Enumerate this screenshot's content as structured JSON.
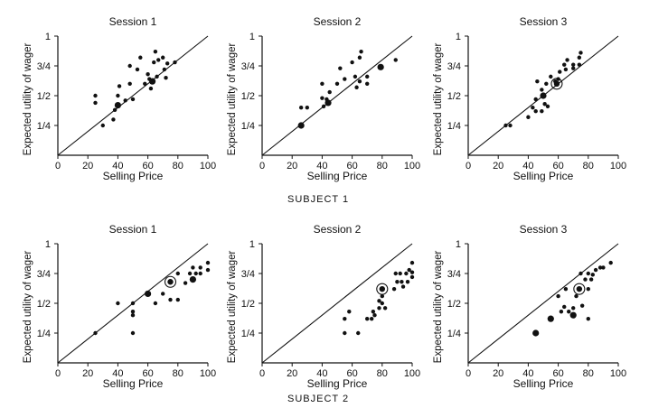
{
  "figure": {
    "subject_labels": [
      "SUBJECT 1",
      "SUBJECT 2"
    ],
    "ink_color": "#111111"
  },
  "chart_data": [
    {
      "type": "scatter",
      "subject": "SUBJECT 1",
      "title": "Session 1",
      "xlabel": "Selling Price",
      "ylabel": "Expected utility of wager",
      "xlim": [
        0,
        100
      ],
      "ylim": [
        0,
        1
      ],
      "x_ticks": [
        "0",
        "20",
        "40",
        "60",
        "80",
        "100"
      ],
      "y_ticks": [
        "1/4",
        "1/2",
        "3/4",
        "1"
      ],
      "reference_line": [
        [
          0,
          0
        ],
        [
          100,
          1
        ]
      ],
      "points": [
        {
          "x": 25,
          "y": 0.5,
          "marker": "dot"
        },
        {
          "x": 25,
          "y": 0.44,
          "marker": "dot"
        },
        {
          "x": 30,
          "y": 0.25,
          "marker": "dot"
        },
        {
          "x": 37,
          "y": 0.3,
          "marker": "dot"
        },
        {
          "x": 38,
          "y": 0.38,
          "marker": "dot"
        },
        {
          "x": 40,
          "y": 0.42,
          "marker": "large-dot"
        },
        {
          "x": 40,
          "y": 0.5,
          "marker": "dot"
        },
        {
          "x": 41,
          "y": 0.58,
          "marker": "dot"
        },
        {
          "x": 45,
          "y": 0.46,
          "marker": "dot"
        },
        {
          "x": 48,
          "y": 0.6,
          "marker": "dot"
        },
        {
          "x": 48,
          "y": 0.75,
          "marker": "dot"
        },
        {
          "x": 50,
          "y": 0.47,
          "marker": "dot"
        },
        {
          "x": 53,
          "y": 0.72,
          "marker": "dot"
        },
        {
          "x": 55,
          "y": 0.82,
          "marker": "dot"
        },
        {
          "x": 58,
          "y": 0.6,
          "marker": "dot"
        },
        {
          "x": 60,
          "y": 0.68,
          "marker": "dot"
        },
        {
          "x": 61,
          "y": 0.64,
          "marker": "dot"
        },
        {
          "x": 62,
          "y": 0.56,
          "marker": "dot"
        },
        {
          "x": 63,
          "y": 0.62,
          "marker": "large-dot"
        },
        {
          "x": 64,
          "y": 0.78,
          "marker": "dot"
        },
        {
          "x": 65,
          "y": 0.87,
          "marker": "dot"
        },
        {
          "x": 66,
          "y": 0.66,
          "marker": "dot"
        },
        {
          "x": 67,
          "y": 0.8,
          "marker": "dot"
        },
        {
          "x": 70,
          "y": 0.82,
          "marker": "dot"
        },
        {
          "x": 71,
          "y": 0.72,
          "marker": "dot"
        },
        {
          "x": 72,
          "y": 0.65,
          "marker": "dot"
        },
        {
          "x": 73,
          "y": 0.77,
          "marker": "dot"
        },
        {
          "x": 78,
          "y": 0.78,
          "marker": "dot"
        }
      ]
    },
    {
      "type": "scatter",
      "subject": "SUBJECT 1",
      "title": "Session 2",
      "xlabel": "Selling Price",
      "ylabel": "Expected utility of wager",
      "xlim": [
        0,
        100
      ],
      "ylim": [
        0,
        1
      ],
      "x_ticks": [
        "0",
        "20",
        "40",
        "60",
        "80",
        "100"
      ],
      "y_ticks": [
        "1/4",
        "1/2",
        "3/4",
        "1"
      ],
      "reference_line": [
        [
          0,
          0
        ],
        [
          100,
          1
        ]
      ],
      "points": [
        {
          "x": 26,
          "y": 0.25,
          "marker": "large-dot"
        },
        {
          "x": 26,
          "y": 0.4,
          "marker": "dot"
        },
        {
          "x": 30,
          "y": 0.4,
          "marker": "dot"
        },
        {
          "x": 40,
          "y": 0.48,
          "marker": "dot"
        },
        {
          "x": 40,
          "y": 0.6,
          "marker": "dot"
        },
        {
          "x": 41,
          "y": 0.41,
          "marker": "dot"
        },
        {
          "x": 43,
          "y": 0.47,
          "marker": "dot"
        },
        {
          "x": 44,
          "y": 0.44,
          "marker": "large-dot"
        },
        {
          "x": 45,
          "y": 0.53,
          "marker": "dot"
        },
        {
          "x": 50,
          "y": 0.6,
          "marker": "dot"
        },
        {
          "x": 52,
          "y": 0.73,
          "marker": "dot"
        },
        {
          "x": 55,
          "y": 0.64,
          "marker": "dot"
        },
        {
          "x": 60,
          "y": 0.78,
          "marker": "dot"
        },
        {
          "x": 62,
          "y": 0.66,
          "marker": "dot"
        },
        {
          "x": 63,
          "y": 0.57,
          "marker": "dot"
        },
        {
          "x": 65,
          "y": 0.62,
          "marker": "dot"
        },
        {
          "x": 65,
          "y": 0.82,
          "marker": "dot"
        },
        {
          "x": 66,
          "y": 0.87,
          "marker": "dot"
        },
        {
          "x": 70,
          "y": 0.6,
          "marker": "dot"
        },
        {
          "x": 70,
          "y": 0.66,
          "marker": "dot"
        },
        {
          "x": 79,
          "y": 0.74,
          "marker": "large-dot"
        },
        {
          "x": 89,
          "y": 0.8,
          "marker": "dot"
        }
      ]
    },
    {
      "type": "scatter",
      "subject": "SUBJECT 1",
      "title": "Session 3",
      "xlabel": "Selling Price",
      "ylabel": "Expected utility of wager",
      "xlim": [
        0,
        100
      ],
      "ylim": [
        0,
        1
      ],
      "x_ticks": [
        "0",
        "20",
        "40",
        "60",
        "80",
        "100"
      ],
      "y_ticks": [
        "1/4",
        "1/2",
        "3/4",
        "1"
      ],
      "reference_line": [
        [
          0,
          0
        ],
        [
          100,
          1
        ]
      ],
      "points": [
        {
          "x": 25,
          "y": 0.25,
          "marker": "dot"
        },
        {
          "x": 28,
          "y": 0.25,
          "marker": "dot"
        },
        {
          "x": 40,
          "y": 0.32,
          "marker": "dot"
        },
        {
          "x": 43,
          "y": 0.4,
          "marker": "dot"
        },
        {
          "x": 45,
          "y": 0.37,
          "marker": "dot"
        },
        {
          "x": 45,
          "y": 0.47,
          "marker": "dot"
        },
        {
          "x": 46,
          "y": 0.62,
          "marker": "dot"
        },
        {
          "x": 49,
          "y": 0.55,
          "marker": "dot"
        },
        {
          "x": 49,
          "y": 0.37,
          "marker": "dot"
        },
        {
          "x": 50,
          "y": 0.5,
          "marker": "large-dot"
        },
        {
          "x": 51,
          "y": 0.43,
          "marker": "dot"
        },
        {
          "x": 52,
          "y": 0.6,
          "marker": "dot"
        },
        {
          "x": 53,
          "y": 0.41,
          "marker": "dot"
        },
        {
          "x": 55,
          "y": 0.66,
          "marker": "dot"
        },
        {
          "x": 58,
          "y": 0.62,
          "marker": "dot"
        },
        {
          "x": 59,
          "y": 0.6,
          "marker": "circled-dot"
        },
        {
          "x": 60,
          "y": 0.64,
          "marker": "dot"
        },
        {
          "x": 61,
          "y": 0.7,
          "marker": "dot"
        },
        {
          "x": 64,
          "y": 0.76,
          "marker": "dot"
        },
        {
          "x": 65,
          "y": 0.72,
          "marker": "dot"
        },
        {
          "x": 66,
          "y": 0.8,
          "marker": "dot"
        },
        {
          "x": 70,
          "y": 0.73,
          "marker": "dot"
        },
        {
          "x": 70,
          "y": 0.76,
          "marker": "dot"
        },
        {
          "x": 74,
          "y": 0.76,
          "marker": "dot"
        },
        {
          "x": 74,
          "y": 0.82,
          "marker": "dot"
        },
        {
          "x": 75,
          "y": 0.86,
          "marker": "dot"
        }
      ]
    },
    {
      "type": "scatter",
      "subject": "SUBJECT 2",
      "title": "Session 1",
      "xlabel": "Selling Price",
      "ylabel": "Expected utility of wager",
      "xlim": [
        0,
        100
      ],
      "ylim": [
        0,
        1
      ],
      "x_ticks": [
        "0",
        "20",
        "40",
        "60",
        "80",
        "100"
      ],
      "y_ticks": [
        "1/4",
        "1/2",
        "3/4",
        "1"
      ],
      "reference_line": [
        [
          0,
          0
        ],
        [
          100,
          1
        ]
      ],
      "points": [
        {
          "x": 25,
          "y": 0.25,
          "marker": "dot"
        },
        {
          "x": 40,
          "y": 0.5,
          "marker": "dot"
        },
        {
          "x": 50,
          "y": 0.4,
          "marker": "dot"
        },
        {
          "x": 50,
          "y": 0.25,
          "marker": "dot"
        },
        {
          "x": 50,
          "y": 0.5,
          "marker": "dot"
        },
        {
          "x": 50,
          "y": 0.43,
          "marker": "dot"
        },
        {
          "x": 60,
          "y": 0.58,
          "marker": "large-dot"
        },
        {
          "x": 65,
          "y": 0.5,
          "marker": "dot"
        },
        {
          "x": 70,
          "y": 0.58,
          "marker": "dot"
        },
        {
          "x": 75,
          "y": 0.68,
          "marker": "circled-dot"
        },
        {
          "x": 75,
          "y": 0.53,
          "marker": "dot"
        },
        {
          "x": 80,
          "y": 0.53,
          "marker": "dot"
        },
        {
          "x": 80,
          "y": 0.75,
          "marker": "dot"
        },
        {
          "x": 85,
          "y": 0.67,
          "marker": "dot"
        },
        {
          "x": 88,
          "y": 0.75,
          "marker": "dot"
        },
        {
          "x": 90,
          "y": 0.7,
          "marker": "large-dot"
        },
        {
          "x": 90,
          "y": 0.8,
          "marker": "dot"
        },
        {
          "x": 92,
          "y": 0.75,
          "marker": "dot"
        },
        {
          "x": 95,
          "y": 0.8,
          "marker": "dot"
        },
        {
          "x": 95,
          "y": 0.75,
          "marker": "dot"
        },
        {
          "x": 100,
          "y": 0.78,
          "marker": "dot"
        },
        {
          "x": 100,
          "y": 0.84,
          "marker": "dot"
        }
      ]
    },
    {
      "type": "scatter",
      "subject": "SUBJECT 2",
      "title": "Session 2",
      "xlabel": "Selling Price",
      "ylabel": "Expected utility of wager",
      "xlim": [
        0,
        100
      ],
      "ylim": [
        0,
        1
      ],
      "x_ticks": [
        "0",
        "20",
        "40",
        "60",
        "80",
        "100"
      ],
      "y_ticks": [
        "1/4",
        "1/2",
        "3/4",
        "1"
      ],
      "reference_line": [
        [
          0,
          0
        ],
        [
          100,
          1
        ]
      ],
      "points": [
        {
          "x": 55,
          "y": 0.25,
          "marker": "dot"
        },
        {
          "x": 55,
          "y": 0.37,
          "marker": "dot"
        },
        {
          "x": 58,
          "y": 0.43,
          "marker": "dot"
        },
        {
          "x": 64,
          "y": 0.25,
          "marker": "dot"
        },
        {
          "x": 70,
          "y": 0.37,
          "marker": "dot"
        },
        {
          "x": 73,
          "y": 0.37,
          "marker": "dot"
        },
        {
          "x": 74,
          "y": 0.43,
          "marker": "dot"
        },
        {
          "x": 75,
          "y": 0.4,
          "marker": "dot"
        },
        {
          "x": 78,
          "y": 0.46,
          "marker": "dot"
        },
        {
          "x": 78,
          "y": 0.52,
          "marker": "dot"
        },
        {
          "x": 80,
          "y": 0.62,
          "marker": "circled-dot"
        },
        {
          "x": 80,
          "y": 0.56,
          "marker": "dot"
        },
        {
          "x": 80,
          "y": 0.5,
          "marker": "dot"
        },
        {
          "x": 82,
          "y": 0.46,
          "marker": "dot"
        },
        {
          "x": 88,
          "y": 0.62,
          "marker": "dot"
        },
        {
          "x": 89,
          "y": 0.75,
          "marker": "dot"
        },
        {
          "x": 90,
          "y": 0.68,
          "marker": "dot"
        },
        {
          "x": 92,
          "y": 0.75,
          "marker": "dot"
        },
        {
          "x": 93,
          "y": 0.68,
          "marker": "dot"
        },
        {
          "x": 94,
          "y": 0.64,
          "marker": "dot"
        },
        {
          "x": 96,
          "y": 0.75,
          "marker": "dot"
        },
        {
          "x": 97,
          "y": 0.68,
          "marker": "dot"
        },
        {
          "x": 98,
          "y": 0.78,
          "marker": "dot"
        },
        {
          "x": 100,
          "y": 0.84,
          "marker": "dot"
        },
        {
          "x": 100,
          "y": 0.72,
          "marker": "dot"
        },
        {
          "x": 100,
          "y": 0.76,
          "marker": "dot"
        }
      ]
    },
    {
      "type": "scatter",
      "subject": "SUBJECT 2",
      "title": "Session 3",
      "xlabel": "Selling Price",
      "ylabel": "Expected utility of wager",
      "xlim": [
        0,
        100
      ],
      "ylim": [
        0,
        1
      ],
      "x_ticks": [
        "0",
        "20",
        "40",
        "60",
        "80",
        "100"
      ],
      "y_ticks": [
        "1/4",
        "1/2",
        "3/4",
        "1"
      ],
      "reference_line": [
        [
          0,
          0
        ],
        [
          100,
          1
        ]
      ],
      "points": [
        {
          "x": 45,
          "y": 0.25,
          "marker": "large-dot"
        },
        {
          "x": 55,
          "y": 0.37,
          "marker": "large-dot"
        },
        {
          "x": 60,
          "y": 0.56,
          "marker": "dot"
        },
        {
          "x": 62,
          "y": 0.43,
          "marker": "dot"
        },
        {
          "x": 64,
          "y": 0.47,
          "marker": "dot"
        },
        {
          "x": 65,
          "y": 0.62,
          "marker": "dot"
        },
        {
          "x": 67,
          "y": 0.43,
          "marker": "dot"
        },
        {
          "x": 70,
          "y": 0.4,
          "marker": "large-dot"
        },
        {
          "x": 70,
          "y": 0.46,
          "marker": "dot"
        },
        {
          "x": 72,
          "y": 0.56,
          "marker": "dot"
        },
        {
          "x": 74,
          "y": 0.62,
          "marker": "circled-dot"
        },
        {
          "x": 75,
          "y": 0.75,
          "marker": "dot"
        },
        {
          "x": 76,
          "y": 0.48,
          "marker": "dot"
        },
        {
          "x": 78,
          "y": 0.7,
          "marker": "dot"
        },
        {
          "x": 80,
          "y": 0.62,
          "marker": "dot"
        },
        {
          "x": 80,
          "y": 0.75,
          "marker": "dot"
        },
        {
          "x": 80,
          "y": 0.37,
          "marker": "dot"
        },
        {
          "x": 82,
          "y": 0.7,
          "marker": "dot"
        },
        {
          "x": 83,
          "y": 0.74,
          "marker": "dot"
        },
        {
          "x": 85,
          "y": 0.78,
          "marker": "dot"
        },
        {
          "x": 88,
          "y": 0.8,
          "marker": "dot"
        },
        {
          "x": 90,
          "y": 0.8,
          "marker": "dot"
        },
        {
          "x": 95,
          "y": 0.84,
          "marker": "dot"
        }
      ]
    }
  ]
}
